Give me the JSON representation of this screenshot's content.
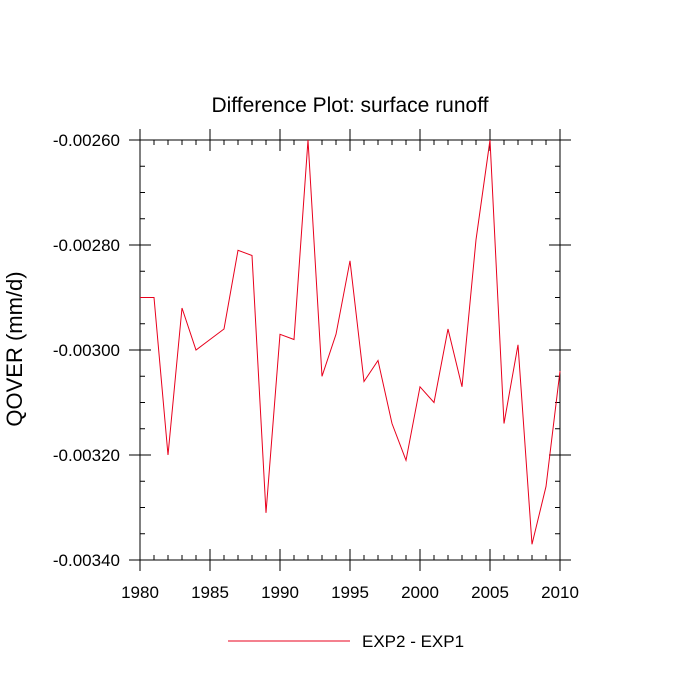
{
  "chart_data": {
    "type": "line",
    "title": "Difference Plot: surface runoff",
    "ylabel": "QOVER  (mm/d)",
    "xlabel": "",
    "xlim": [
      1980,
      2010
    ],
    "ylim": [
      -0.0034,
      -0.0026
    ],
    "x_ticks": [
      1980,
      1985,
      1990,
      1995,
      2000,
      2005,
      2010
    ],
    "y_ticks": [
      -0.0026,
      -0.0028,
      -0.003,
      -0.0032,
      -0.0034
    ],
    "x_tick_labels": [
      "1980",
      "1985",
      "1990",
      "1995",
      "2000",
      "2005",
      "2010"
    ],
    "y_tick_labels": [
      "-0.00260",
      "-0.00280",
      "-0.00300",
      "-0.00320",
      "-0.00340"
    ],
    "grid": false,
    "legend_position": "bottom-center",
    "series": [
      {
        "name": "EXP2 - EXP1",
        "color": "#e8001c",
        "x": [
          1980,
          1981,
          1982,
          1983,
          1984,
          1985,
          1986,
          1987,
          1988,
          1989,
          1990,
          1991,
          1992,
          1993,
          1994,
          1995,
          1996,
          1997,
          1998,
          1999,
          2000,
          2001,
          2002,
          2003,
          2004,
          2005,
          2006,
          2007,
          2008,
          2009,
          2010
        ],
        "values": [
          -0.0029,
          -0.0029,
          -0.0032,
          -0.00292,
          -0.003,
          -0.00298,
          -0.00296,
          -0.00281,
          -0.00282,
          -0.00331,
          -0.00297,
          -0.00298,
          -0.0026,
          -0.00305,
          -0.00297,
          -0.00283,
          -0.00306,
          -0.00302,
          -0.00314,
          -0.00321,
          -0.00307,
          -0.0031,
          -0.00296,
          -0.00307,
          -0.00279,
          -0.0026,
          -0.00314,
          -0.00299,
          -0.00337,
          -0.00326,
          -0.00304
        ]
      }
    ]
  }
}
